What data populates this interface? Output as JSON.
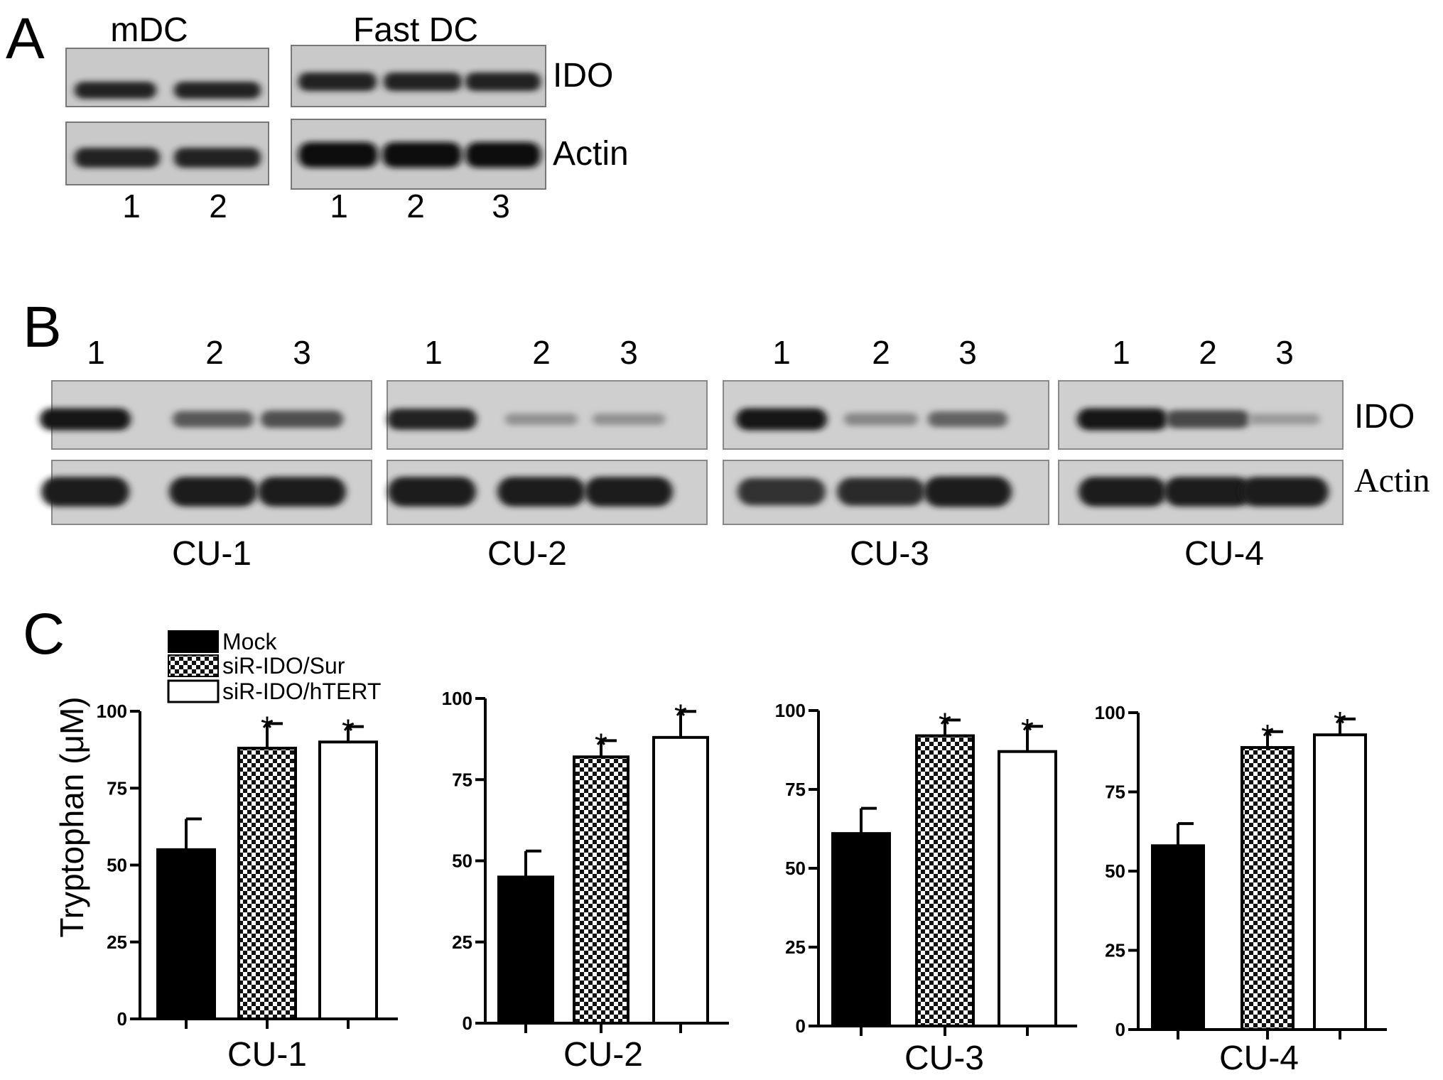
{
  "panel_a": {
    "letter": "A",
    "group_mdc": "mDC",
    "group_fastdc": "Fast DC",
    "row_labels": [
      "IDO",
      "Actin"
    ],
    "lanes_mdc": [
      "1",
      "2"
    ],
    "lanes_fastdc": [
      "1",
      "2",
      "3"
    ]
  },
  "panel_b": {
    "letter": "B",
    "lane_numbers": [
      "1",
      "2",
      "3"
    ],
    "row_labels": [
      "IDO",
      "Actin"
    ],
    "cell_lines": [
      "CU-1",
      "CU-2",
      "CU-3",
      "CU-4"
    ],
    "band_intensity": {
      "ido": [
        [
          0.95,
          0.6,
          0.65
        ],
        [
          0.9,
          0.3,
          0.3
        ],
        [
          0.95,
          0.35,
          0.55
        ],
        [
          0.95,
          0.7,
          0.25
        ]
      ],
      "actin": [
        [
          0.9,
          0.9,
          0.9
        ],
        [
          0.9,
          0.9,
          0.9
        ],
        [
          0.75,
          0.8,
          0.95
        ],
        [
          0.9,
          0.9,
          0.9
        ]
      ]
    }
  },
  "panel_c": {
    "letter": "C",
    "ylabel": "Tryptophan (μM)",
    "legend": [
      "Mock",
      "siR-IDO/Sur",
      "siR-IDO/hTERT"
    ],
    "star": "*"
  },
  "chart_data": [
    {
      "type": "bar",
      "xlabel": "CU-1",
      "ylabel": "Tryptophan (μM)",
      "ylim": [
        0,
        100
      ],
      "yticks": [
        "0",
        "25",
        "50",
        "75",
        "100"
      ],
      "series": [
        {
          "name": "Mock",
          "values": [
            55
          ],
          "errors": [
            10
          ],
          "significant": [
            false
          ]
        },
        {
          "name": "siR-IDO/Sur",
          "values": [
            88
          ],
          "errors": [
            8
          ],
          "significant": [
            true
          ]
        },
        {
          "name": "siR-IDO/hTERT",
          "values": [
            90
          ],
          "errors": [
            5
          ],
          "significant": [
            true
          ]
        }
      ]
    },
    {
      "type": "bar",
      "xlabel": "CU-2",
      "ylim": [
        0,
        100
      ],
      "yticks": [
        "0",
        "25",
        "50",
        "75",
        "100"
      ],
      "series": [
        {
          "name": "Mock",
          "values": [
            45
          ],
          "errors": [
            8
          ],
          "significant": [
            false
          ]
        },
        {
          "name": "siR-IDO/Sur",
          "values": [
            82
          ],
          "errors": [
            5
          ],
          "significant": [
            true
          ]
        },
        {
          "name": "siR-IDO/hTERT",
          "values": [
            88
          ],
          "errors": [
            8
          ],
          "significant": [
            true
          ]
        }
      ]
    },
    {
      "type": "bar",
      "xlabel": "CU-3",
      "ylim": [
        0,
        100
      ],
      "yticks": [
        "0",
        "25",
        "50",
        "75",
        "100"
      ],
      "series": [
        {
          "name": "Mock",
          "values": [
            61
          ],
          "errors": [
            8
          ],
          "significant": [
            false
          ]
        },
        {
          "name": "siR-IDO/Sur",
          "values": [
            92
          ],
          "errors": [
            5
          ],
          "significant": [
            true
          ]
        },
        {
          "name": "siR-IDO/hTERT",
          "values": [
            87
          ],
          "errors": [
            8
          ],
          "significant": [
            true
          ]
        }
      ]
    },
    {
      "type": "bar",
      "xlabel": "CU-4",
      "ylim": [
        0,
        100
      ],
      "yticks": [
        "0",
        "25",
        "50",
        "75",
        "100"
      ],
      "series": [
        {
          "name": "Mock",
          "values": [
            58
          ],
          "errors": [
            7
          ],
          "significant": [
            false
          ]
        },
        {
          "name": "siR-IDO/Sur",
          "values": [
            89
          ],
          "errors": [
            5
          ],
          "significant": [
            true
          ]
        },
        {
          "name": "siR-IDO/hTERT",
          "values": [
            93
          ],
          "errors": [
            5
          ],
          "significant": [
            true
          ]
        }
      ]
    }
  ]
}
